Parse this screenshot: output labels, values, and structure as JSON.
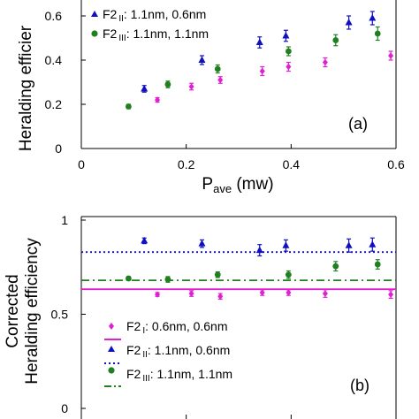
{
  "chart_data": [
    {
      "type": "scatter",
      "panel_label": "(a)",
      "xlabel_main": "P",
      "xlabel_sub": "ave",
      "xlabel_unit": " (mw)",
      "ylabel": "Heralding efficier",
      "xlim": [
        0,
        0.6
      ],
      "ylim": [
        0,
        0.68
      ],
      "xticks": [
        0,
        0.2,
        0.4,
        0.6
      ],
      "xtick_labels": [
        "0",
        "0.2",
        "0.4",
        "0.6"
      ],
      "yticks": [
        0,
        0.2,
        0.4,
        0.6
      ],
      "ytick_labels": [
        "0",
        "0.2",
        "0.4",
        "0.6"
      ],
      "grid": false,
      "legend_position": "top-left",
      "series": [
        {
          "id": "F2I",
          "marker": "diamond",
          "color": "#e020d0",
          "in_legend": false,
          "x": [
            0.145,
            0.21,
            0.265,
            0.345,
            0.395,
            0.465,
            0.59
          ],
          "y": [
            0.22,
            0.28,
            0.31,
            0.35,
            0.37,
            0.39,
            0.42
          ],
          "err": [
            0.01,
            0.015,
            0.015,
            0.02,
            0.02,
            0.02,
            0.02
          ]
        },
        {
          "id": "F2II",
          "legend_main": "F2",
          "legend_sub": "II",
          "legend_rest": ": 1.1nm, 0.6nm",
          "marker": "triangle",
          "color": "#1010c0",
          "in_legend": true,
          "x": [
            0.12,
            0.23,
            0.34,
            0.39,
            0.51,
            0.555
          ],
          "y": [
            0.27,
            0.4,
            0.48,
            0.51,
            0.57,
            0.59
          ],
          "err": [
            0.015,
            0.02,
            0.025,
            0.025,
            0.03,
            0.03
          ]
        },
        {
          "id": "F2III",
          "legend_main": "F2",
          "legend_sub": "III",
          "legend_rest": ": 1.1nm, 1.1nm",
          "marker": "circle",
          "color": "#208020",
          "in_legend": true,
          "x": [
            0.09,
            0.165,
            0.26,
            0.395,
            0.485,
            0.565
          ],
          "y": [
            0.19,
            0.29,
            0.36,
            0.44,
            0.49,
            0.52
          ],
          "err": [
            0.01,
            0.015,
            0.018,
            0.02,
            0.025,
            0.03
          ]
        }
      ]
    },
    {
      "type": "scatter",
      "panel_label": "(b)",
      "ylabel_line1": "Corrected",
      "ylabel_line2": "Heralding efficiency",
      "xlim": [
        0,
        0.6
      ],
      "ylim": [
        0,
        1
      ],
      "yticks": [
        0,
        0.5,
        1
      ],
      "ytick_labels": [
        "0",
        "0.5",
        "1"
      ],
      "grid": false,
      "legend_position": "bottom-left",
      "reference_lines": [
        {
          "series": "F2I",
          "y": 0.633,
          "style": "solid",
          "color": "#e020d0"
        },
        {
          "series": "F2II",
          "y": 0.83,
          "style": "dotted",
          "color": "#1010c0"
        },
        {
          "series": "F2III",
          "y": 0.68,
          "style": "dashdot",
          "color": "#208020"
        }
      ],
      "series": [
        {
          "id": "F2I",
          "legend_main": "F2",
          "legend_sub": "I",
          "legend_rest": ": 0.6nm, 0.6nm",
          "marker": "diamond",
          "color": "#e020d0",
          "x": [
            0.145,
            0.21,
            0.265,
            0.345,
            0.395,
            0.465,
            0.59
          ],
          "y": [
            0.605,
            0.61,
            0.595,
            0.615,
            0.615,
            0.61,
            0.605
          ],
          "err": [
            0.01,
            0.015,
            0.015,
            0.015,
            0.015,
            0.02,
            0.02
          ]
        },
        {
          "id": "F2II",
          "legend_main": "F2",
          "legend_sub": "II",
          "legend_rest": ": 1.1nm, 0.6nm",
          "marker": "triangle",
          "color": "#1010c0",
          "x": [
            0.12,
            0.23,
            0.34,
            0.39,
            0.51,
            0.555
          ],
          "y": [
            0.89,
            0.875,
            0.84,
            0.865,
            0.865,
            0.87
          ],
          "err": [
            0.015,
            0.02,
            0.03,
            0.03,
            0.035,
            0.035
          ]
        },
        {
          "id": "F2III",
          "legend_main": "F2",
          "legend_sub": "III",
          "legend_rest": ": 1.1nm, 1.1nm",
          "marker": "circle",
          "color": "#208020",
          "x": [
            0.09,
            0.165,
            0.26,
            0.395,
            0.485,
            0.565
          ],
          "y": [
            0.69,
            0.685,
            0.71,
            0.71,
            0.755,
            0.765
          ],
          "err": [
            0.01,
            0.015,
            0.015,
            0.02,
            0.025,
            0.025
          ]
        }
      ]
    }
  ]
}
